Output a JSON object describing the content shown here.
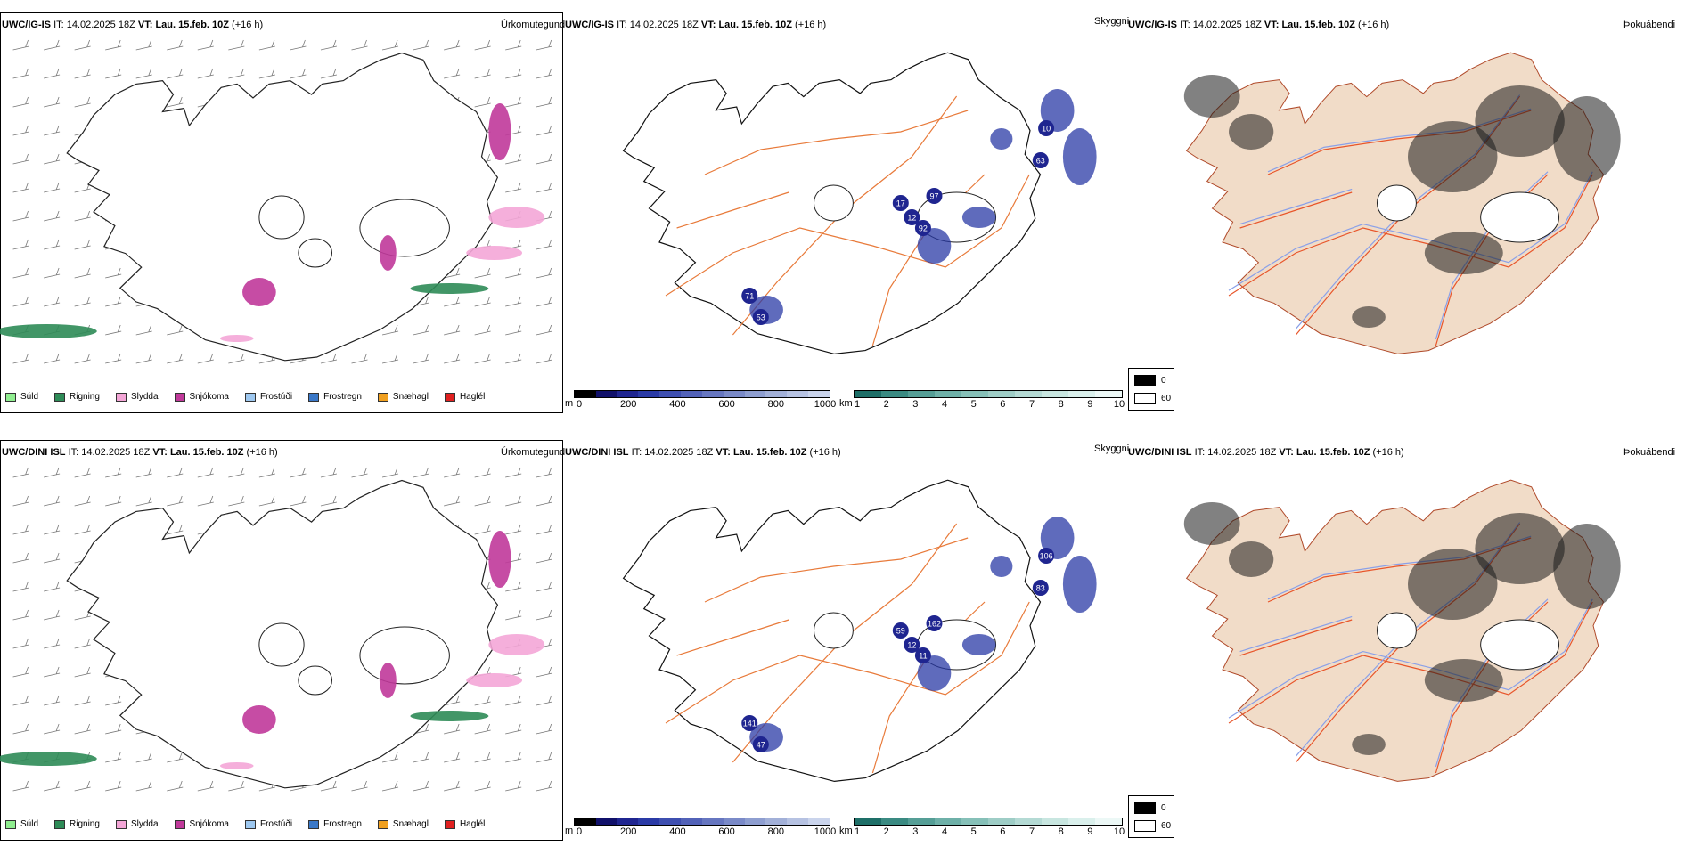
{
  "rows": [
    {
      "model": "UWC/IG-IS",
      "it_label": "IT:",
      "it_value": "14.02.2025 18Z",
      "vt_label": "VT:",
      "vt_value": "Lau. 15.feb. 10Z",
      "lead": "(+16 h)",
      "dots": [
        {
          "label": "71"
        },
        {
          "label": "53"
        },
        {
          "label": "97"
        },
        {
          "label": "92"
        },
        {
          "label": "12"
        },
        {
          "label": "17"
        },
        {
          "label": "63"
        },
        {
          "label": "10"
        }
      ]
    },
    {
      "model": "UWC/DINI ISL",
      "it_label": "IT:",
      "it_value": "14.02.2025 18Z",
      "vt_label": "VT:",
      "vt_value": "Lau. 15.feb. 10Z",
      "lead": "(+16 h)",
      "dots": [
        {
          "label": "141"
        },
        {
          "label": "47"
        },
        {
          "label": "162"
        },
        {
          "label": "11"
        },
        {
          "label": "12"
        },
        {
          "label": "59"
        },
        {
          "label": "83"
        },
        {
          "label": "106"
        }
      ]
    }
  ],
  "panel_titles": {
    "precip": "Úrkomutegund",
    "cloud": "Skyggni",
    "fog": "Þokuábendi"
  },
  "precip_legend": [
    {
      "label": "Súld",
      "color": "#90ee90"
    },
    {
      "label": "Rigning",
      "color": "#2e8b57"
    },
    {
      "label": "Slydda",
      "color": "#f4a6d7"
    },
    {
      "label": "Snjókoma",
      "color": "#c0399a"
    },
    {
      "label": "Frostúði",
      "color": "#9ec8f0"
    },
    {
      "label": "Frostregn",
      "color": "#3a78c8"
    },
    {
      "label": "Snæhagl",
      "color": "#f0a020"
    },
    {
      "label": "Haglél",
      "color": "#e02020"
    }
  ],
  "ceiling_scale": {
    "unit": "m",
    "ticks": [
      "0",
      "200",
      "400",
      "600",
      "800",
      "1000"
    ],
    "colors": [
      "#000000",
      "#10106a",
      "#1f2590",
      "#2a3aa6",
      "#3e4fb0",
      "#5262b8",
      "#6676c0",
      "#7a8ac8",
      "#8e9ed0",
      "#a2b0d8",
      "#b6c2e2",
      "#cad4ec"
    ]
  },
  "vis_scale": {
    "unit": "km",
    "ticks": [
      "1",
      "2",
      "3",
      "4",
      "5",
      "6",
      "7",
      "8",
      "9",
      "10"
    ],
    "colors": [
      "#1e6f68",
      "#3a8a82",
      "#559e96",
      "#6eb0a8",
      "#86c0b8",
      "#9ecdc6",
      "#b4dad4",
      "#c8e6e0",
      "#daf0ec",
      "#ecf8f6"
    ]
  },
  "fog_legend": [
    {
      "label": "0",
      "color": "#000000"
    },
    {
      "label": "60",
      "color": "#ffffff"
    }
  ],
  "colors": {
    "land": "#f1dcc8",
    "roads": "#e87a3a",
    "coast": "#222222",
    "rivers": "#8aa0e8",
    "fog_roads": "#e8552a"
  }
}
